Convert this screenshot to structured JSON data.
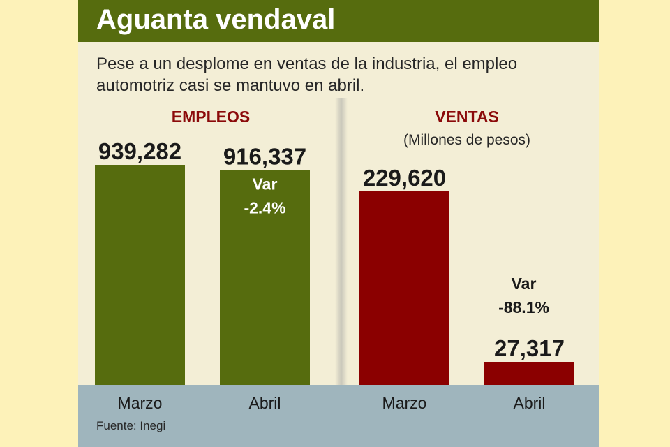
{
  "title": "Aguanta vendaval",
  "subtitle": "Pese a un desplome en ventas de la industria, el empleo automotriz casi se mantuvo en abril.",
  "source": "Fuente: Inegi",
  "colors": {
    "title_bar": "#566c0e",
    "empleos_bar": "#566c0e",
    "ventas_bar": "#8b0000",
    "panel_title": "#8b0a0a",
    "card": "#f3eed6",
    "base": "#9fb5bd",
    "page_bg": "#fdf2b9"
  },
  "chart_data": [
    {
      "type": "bar",
      "title": "EMPLEOS",
      "subtitle": "",
      "categories": [
        "Marzo",
        "Abril"
      ],
      "values": [
        939282,
        916337
      ],
      "value_labels": [
        "939,282",
        "916,337"
      ],
      "variation": {
        "label": "Var",
        "value": "-2.4%",
        "category": "Abril"
      },
      "grid": false
    },
    {
      "type": "bar",
      "title": "VENTAS",
      "subtitle": "(Millones de pesos)",
      "categories": [
        "Marzo",
        "Abril"
      ],
      "values": [
        229620,
        27317
      ],
      "value_labels": [
        "229,620",
        "27,317"
      ],
      "variation": {
        "label": "Var",
        "value": "-88.1%",
        "category": "Abril"
      },
      "grid": false
    }
  ]
}
